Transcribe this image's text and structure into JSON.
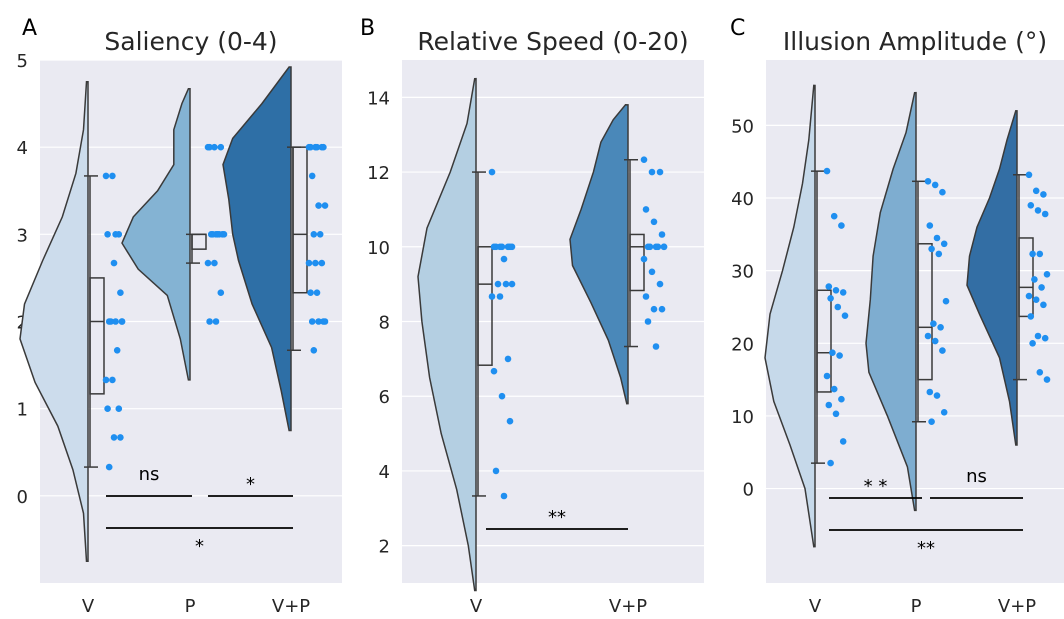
{
  "chart_data": [
    {
      "type": "violin",
      "panel_label": "A",
      "title": "Saliency (0-4)",
      "categories": [
        "V",
        "P",
        "V+P"
      ],
      "ylim": [
        -1,
        5
      ],
      "yticks": [
        0,
        1,
        2,
        3,
        4,
        5
      ],
      "grid": true,
      "colors": [
        "#ccdcec",
        "#84b3d3",
        "#2e6fa6"
      ],
      "violins": [
        {
          "category": "V",
          "range": [
            -0.75,
            4.75
          ],
          "shape": [
            [
              -0.75,
              0.01
            ],
            [
              -0.2,
              0.03
            ],
            [
              0.3,
              0.1
            ],
            [
              0.8,
              0.2
            ],
            [
              1.3,
              0.35
            ],
            [
              1.8,
              0.45
            ],
            [
              2.2,
              0.42
            ],
            [
              2.7,
              0.3
            ],
            [
              3.2,
              0.17
            ],
            [
              3.7,
              0.08
            ],
            [
              4.2,
              0.03
            ],
            [
              4.75,
              0.01
            ]
          ],
          "whisker": [
            0.33,
            3.67
          ],
          "box": [
            1.17,
            2.5
          ],
          "median": 2.0,
          "points": [
            3.67,
            3.67,
            3.0,
            3.0,
            2.67,
            2.33,
            2.0,
            2.0,
            2.0,
            2.0,
            1.67,
            1.33,
            1.33,
            1.0,
            1.0,
            0.67,
            0.67,
            0.33,
            3.0,
            2.0
          ]
        },
        {
          "category": "P",
          "range": [
            1.33,
            4.67
          ],
          "shape": [
            [
              1.33,
              0.01
            ],
            [
              1.8,
              0.06
            ],
            [
              2.3,
              0.14
            ],
            [
              2.6,
              0.32
            ],
            [
              2.9,
              0.42
            ],
            [
              3.2,
              0.35
            ],
            [
              3.5,
              0.2
            ],
            [
              3.8,
              0.1
            ],
            [
              4.2,
              0.1
            ],
            [
              4.5,
              0.05
            ],
            [
              4.67,
              0.01
            ]
          ],
          "whisker": [
            2.67,
            3.0
          ],
          "box": [
            2.83,
            3.0
          ],
          "median": 3.0,
          "points": [
            4.0,
            4.0,
            4.0,
            4.0,
            3.0,
            3.0,
            3.0,
            3.0,
            3.0,
            3.0,
            3.0,
            2.67,
            2.67,
            2.33,
            2.0,
            2.0
          ]
        },
        {
          "category": "V+P",
          "range": [
            0.75,
            4.92
          ],
          "shape": [
            [
              0.75,
              0.01
            ],
            [
              1.2,
              0.05
            ],
            [
              1.7,
              0.1
            ],
            [
              2.2,
              0.2
            ],
            [
              2.7,
              0.27
            ],
            [
              3.0,
              0.3
            ],
            [
              3.4,
              0.32
            ],
            [
              3.8,
              0.35
            ],
            [
              4.1,
              0.3
            ],
            [
              4.5,
              0.15
            ],
            [
              4.92,
              0.01
            ]
          ],
          "whisker": [
            1.67,
            4.0
          ],
          "box": [
            2.33,
            4.0
          ],
          "median": 3.0,
          "points": [
            4.0,
            4.0,
            4.0,
            4.0,
            4.0,
            4.0,
            3.67,
            3.33,
            3.33,
            3.0,
            3.0,
            2.67,
            2.67,
            2.67,
            2.33,
            2.33,
            2.0,
            2.0,
            2.0,
            2.0,
            1.67
          ]
        }
      ],
      "annotations": [
        {
          "from": "V",
          "to": "P",
          "level": 0,
          "label": "ns"
        },
        {
          "from": "P",
          "to": "V+P",
          "level": 0,
          "label": "*"
        },
        {
          "from": "V",
          "to": "V+P",
          "level": 1,
          "label": "*"
        }
      ]
    },
    {
      "type": "violin",
      "panel_label": "B",
      "title": "Relative Speed (0-20)",
      "categories": [
        "V",
        "V+P"
      ],
      "ylim": [
        1,
        15
      ],
      "yticks": [
        2,
        4,
        6,
        8,
        10,
        12,
        14
      ],
      "grid": true,
      "colors": [
        "#b4cfe2",
        "#4a88b9"
      ],
      "violins": [
        {
          "category": "V",
          "range": [
            0.8,
            14.5
          ],
          "shape": [
            [
              0.8,
              0.01
            ],
            [
              2,
              0.06
            ],
            [
              3.5,
              0.15
            ],
            [
              5,
              0.27
            ],
            [
              6.5,
              0.36
            ],
            [
              8,
              0.42
            ],
            [
              9.2,
              0.45
            ],
            [
              10.5,
              0.38
            ],
            [
              12,
              0.2
            ],
            [
              13.3,
              0.07
            ],
            [
              14.5,
              0.01
            ]
          ],
          "whisker": [
            3.33,
            12.0
          ],
          "box": [
            6.83,
            10.0
          ],
          "median": 9.0,
          "points": [
            12.0,
            10.0,
            10.0,
            10.0,
            10.0,
            10.0,
            10.0,
            9.67,
            9.0,
            9.0,
            9.0,
            8.67,
            8.67,
            7.0,
            6.67,
            6.0,
            5.33,
            4.0,
            3.33,
            10.0
          ]
        },
        {
          "category": "V+P",
          "range": [
            5.8,
            13.8
          ],
          "shape": [
            [
              5.8,
              0.01
            ],
            [
              6.5,
              0.06
            ],
            [
              7.5,
              0.16
            ],
            [
              8.5,
              0.3
            ],
            [
              9.5,
              0.45
            ],
            [
              10.2,
              0.47
            ],
            [
              11,
              0.38
            ],
            [
              12,
              0.28
            ],
            [
              12.8,
              0.22
            ],
            [
              13.4,
              0.12
            ],
            [
              13.8,
              0.02
            ]
          ],
          "whisker": [
            7.33,
            12.33
          ],
          "box": [
            8.83,
            10.33
          ],
          "median": 10.0,
          "points": [
            12.33,
            12.0,
            12.0,
            11.0,
            10.67,
            10.33,
            10.0,
            10.0,
            10.0,
            10.0,
            10.0,
            9.67,
            9.33,
            9.0,
            8.67,
            8.33,
            8.33,
            8.0,
            7.33,
            10.0
          ]
        }
      ],
      "annotations": [
        {
          "from": "V",
          "to": "V+P",
          "level": 0,
          "label": "**"
        }
      ]
    },
    {
      "type": "violin",
      "panel_label": "C",
      "title": "Illusion Amplitude (°)",
      "categories": [
        "V",
        "P",
        "V+P"
      ],
      "ylim": [
        -13,
        59
      ],
      "yticks": [
        0,
        10,
        20,
        30,
        40,
        50
      ],
      "grid": true,
      "colors": [
        "#c6d9ea",
        "#7eadd0",
        "#336ea4"
      ],
      "violins": [
        {
          "category": "V",
          "range": [
            -8,
            55.5
          ],
          "shape": [
            [
              -8,
              0.01
            ],
            [
              0,
              0.08
            ],
            [
              6,
              0.2
            ],
            [
              12,
              0.33
            ],
            [
              18,
              0.4
            ],
            [
              24,
              0.36
            ],
            [
              30,
              0.26
            ],
            [
              36,
              0.17
            ],
            [
              42,
              0.1
            ],
            [
              48,
              0.05
            ],
            [
              55.5,
              0.01
            ]
          ],
          "whisker": [
            3.5,
            43.7
          ],
          "box": [
            13.3,
            27.3
          ],
          "median": 18.7,
          "points": [
            43.7,
            37.5,
            36.2,
            27.8,
            27.3,
            27.0,
            26.2,
            25.0,
            23.8,
            18.7,
            18.3,
            15.5,
            13.7,
            12.3,
            11.5,
            10.3,
            6.5,
            3.5
          ]
        },
        {
          "category": "P",
          "range": [
            -3,
            54.5
          ],
          "shape": [
            [
              -3,
              0.01
            ],
            [
              3,
              0.06
            ],
            [
              10,
              0.2
            ],
            [
              16,
              0.33
            ],
            [
              20,
              0.35
            ],
            [
              26,
              0.32
            ],
            [
              32,
              0.3
            ],
            [
              38,
              0.25
            ],
            [
              44,
              0.16
            ],
            [
              49,
              0.07
            ],
            [
              54.5,
              0.01
            ]
          ],
          "whisker": [
            9.2,
            42.3
          ],
          "box": [
            15.0,
            33.7
          ],
          "median": 22.2,
          "points": [
            42.3,
            41.8,
            40.8,
            36.2,
            34.5,
            33.7,
            33.0,
            32.3,
            25.8,
            22.7,
            22.2,
            21.0,
            20.3,
            19.0,
            13.3,
            12.8,
            10.5,
            9.2
          ]
        },
        {
          "category": "V+P",
          "range": [
            6,
            52
          ],
          "shape": [
            [
              6,
              0.01
            ],
            [
              12,
              0.06
            ],
            [
              18,
              0.14
            ],
            [
              24,
              0.3
            ],
            [
              28,
              0.4
            ],
            [
              32,
              0.38
            ],
            [
              36,
              0.32
            ],
            [
              40,
              0.22
            ],
            [
              44,
              0.14
            ],
            [
              48,
              0.08
            ],
            [
              52,
              0.01
            ]
          ],
          "whisker": [
            15.0,
            43.2
          ],
          "box": [
            23.7,
            34.5
          ],
          "median": 27.7,
          "points": [
            43.2,
            41.0,
            40.5,
            39.0,
            38.3,
            37.8,
            32.3,
            32.3,
            29.5,
            28.8,
            27.7,
            26.5,
            26.0,
            25.3,
            23.7,
            21.0,
            20.7,
            20.0,
            16.0,
            15.0
          ]
        }
      ],
      "annotations": [
        {
          "from": "V",
          "to": "P",
          "level": 0,
          "label": "* *"
        },
        {
          "from": "P",
          "to": "V+P",
          "level": 0,
          "label": "ns"
        },
        {
          "from": "V",
          "to": "V+P",
          "level": 1,
          "label": "**"
        }
      ]
    }
  ]
}
